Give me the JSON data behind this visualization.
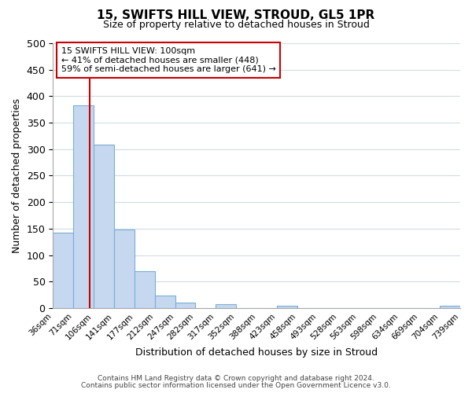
{
  "title": "15, SWIFTS HILL VIEW, STROUD, GL5 1PR",
  "subtitle": "Size of property relative to detached houses in Stroud",
  "xlabel": "Distribution of detached houses by size in Stroud",
  "ylabel": "Number of detached properties",
  "bin_edges": [
    36,
    71,
    106,
    141,
    177,
    212,
    247,
    282,
    317,
    352,
    388,
    423,
    458,
    493,
    528,
    563,
    598,
    634,
    669,
    704,
    739
  ],
  "bin_heights": [
    143,
    383,
    308,
    148,
    70,
    24,
    10,
    0,
    8,
    0,
    0,
    5,
    0,
    0,
    0,
    0,
    0,
    0,
    0,
    5
  ],
  "tick_labels": [
    "36sqm",
    "71sqm",
    "106sqm",
    "141sqm",
    "177sqm",
    "212sqm",
    "247sqm",
    "282sqm",
    "317sqm",
    "352sqm",
    "388sqm",
    "423sqm",
    "458sqm",
    "493sqm",
    "528sqm",
    "563sqm",
    "598sqm",
    "634sqm",
    "669sqm",
    "704sqm",
    "739sqm"
  ],
  "bar_color": "#c5d8ef",
  "bar_edge_color": "#7bafd4",
  "vline_x": 100,
  "vline_color": "#cc0000",
  "annotation_box_text": "15 SWIFTS HILL VIEW: 100sqm\n← 41% of detached houses are smaller (448)\n59% of semi-detached houses are larger (641) →",
  "annotation_box_color": "#cc0000",
  "ylim": [
    0,
    500
  ],
  "yticks": [
    0,
    50,
    100,
    150,
    200,
    250,
    300,
    350,
    400,
    450,
    500
  ],
  "background_color": "#ffffff",
  "plot_bg_color": "#ffffff",
  "grid_color": "#d0dce8",
  "footer_line1": "Contains HM Land Registry data © Crown copyright and database right 2024.",
  "footer_line2": "Contains public sector information licensed under the Open Government Licence v3.0."
}
